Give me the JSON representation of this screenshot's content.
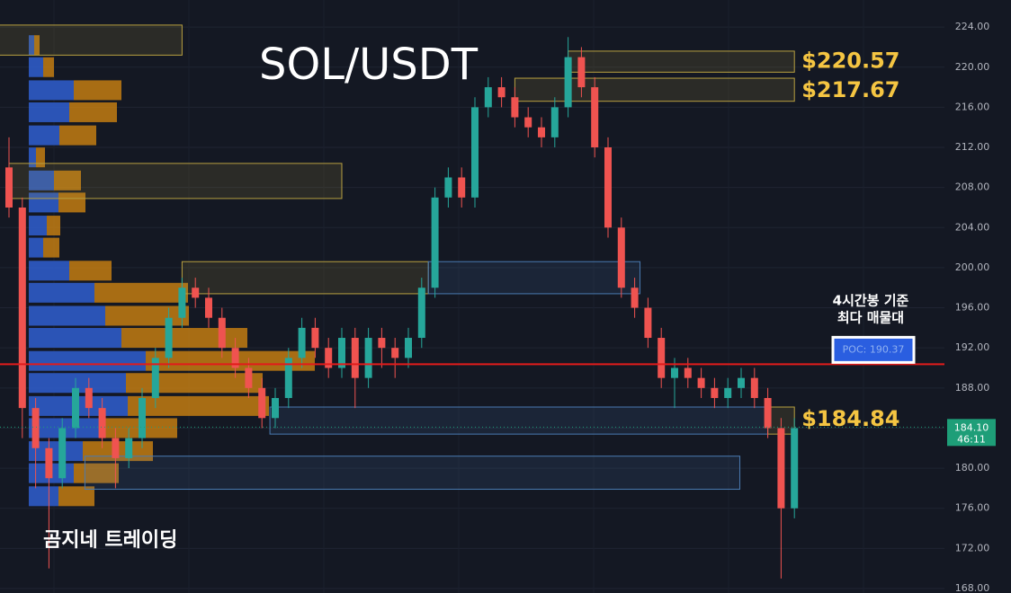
{
  "chart_data": {
    "type": "candlestick",
    "title": "SOL/USDT",
    "watermark": "곰지네 트레이딩",
    "up_color": "#26a69a",
    "down_color": "#ef5350",
    "grid": true,
    "ylim": [
      167.55,
      226.7
    ],
    "yticks": [
      {
        "value": 168,
        "label": "168.00"
      },
      {
        "value": 172,
        "label": "172.00"
      },
      {
        "value": 176,
        "label": "176.00"
      },
      {
        "value": 180,
        "label": "180.00"
      },
      {
        "value": 184,
        "label": "184.00"
      },
      {
        "value": 188,
        "label": "188.00"
      },
      {
        "value": 192,
        "label": "192.00"
      },
      {
        "value": 196,
        "label": "196.00"
      },
      {
        "value": 200,
        "label": "200.00"
      },
      {
        "value": 204,
        "label": "204.00"
      },
      {
        "value": 208,
        "label": "208.00"
      },
      {
        "value": 212,
        "label": "212.00"
      },
      {
        "value": 216,
        "label": "216.00"
      },
      {
        "value": 220,
        "label": "220.00"
      },
      {
        "value": 224,
        "label": "224.00"
      }
    ],
    "candles": {
      "open": [
        210,
        206,
        186,
        182,
        179,
        184,
        188,
        186,
        183,
        181,
        183,
        187,
        191,
        195,
        198,
        197,
        195,
        192,
        190,
        188,
        185,
        187,
        191,
        194,
        192,
        190,
        193,
        189,
        193,
        192,
        191,
        193,
        198,
        207,
        209,
        207,
        216,
        218,
        217,
        215,
        214,
        213,
        216,
        221,
        218,
        212,
        204,
        198,
        196,
        193,
        189,
        190,
        189,
        188,
        187,
        188,
        189,
        187,
        184,
        176
      ],
      "high": [
        213,
        207,
        187,
        183,
        185,
        189,
        189,
        187,
        184,
        184,
        188,
        192,
        196,
        199,
        199,
        198,
        196,
        193,
        191,
        189,
        188,
        192,
        195,
        195,
        193,
        194,
        194,
        194,
        194,
        193,
        194,
        199,
        208,
        210,
        210,
        217,
        219,
        219,
        218,
        216,
        215,
        217,
        223,
        222,
        219,
        213,
        205,
        199,
        197,
        194,
        191,
        191,
        190,
        189,
        189,
        190,
        190,
        188,
        185,
        185
      ],
      "low": [
        205,
        183,
        178,
        170,
        178,
        183,
        185,
        182,
        178,
        180,
        182,
        186,
        190,
        194,
        196,
        194,
        191,
        189,
        187,
        184,
        184,
        186,
        190,
        191,
        189,
        189,
        186,
        188,
        190,
        189,
        190,
        192,
        197,
        206,
        206,
        206,
        215,
        216,
        214,
        213,
        212,
        212,
        215,
        217,
        211,
        203,
        197,
        195,
        192,
        188,
        186,
        188,
        187,
        186,
        186,
        187,
        186,
        183,
        169,
        175
      ],
      "close": [
        206,
        186,
        182,
        179,
        184,
        188,
        186,
        183,
        181,
        183,
        187,
        191,
        195,
        198,
        197,
        195,
        192,
        190,
        188,
        185,
        187,
        191,
        194,
        192,
        190,
        193,
        189,
        193,
        192,
        191,
        193,
        198,
        207,
        209,
        207,
        216,
        218,
        217,
        215,
        214,
        213,
        216,
        221,
        218,
        212,
        204,
        198,
        196,
        193,
        189,
        190,
        189,
        188,
        187,
        188,
        189,
        187,
        184,
        176,
        184
      ]
    },
    "volume_profile": {
      "buy_color": "#2f5fd0",
      "sell_color": "#d98a10",
      "levels": [
        222.2,
        220,
        217.7,
        215.5,
        213.2,
        211,
        208.7,
        206.5,
        204.2,
        202,
        199.7,
        197.5,
        195.2,
        193,
        190.7,
        188.5,
        186.2,
        184,
        181.7,
        179.5,
        177.2
      ],
      "buy": [
        6,
        16,
        50,
        45,
        34,
        8,
        28,
        33,
        20,
        16,
        45,
        73,
        85,
        103,
        130,
        108,
        110,
        80,
        60,
        50,
        33
      ],
      "sell": [
        6,
        12,
        53,
        53,
        41,
        10,
        30,
        30,
        15,
        18,
        47,
        104,
        93,
        140,
        188,
        152,
        157,
        85,
        78,
        50,
        40
      ]
    },
    "zones": [
      {
        "top": 224.2,
        "bottom": 221.2,
        "from": -1,
        "to": 13,
        "color": "#b8a040"
      },
      {
        "top": 221.6,
        "bottom": 219.5,
        "from": 42,
        "to": 59,
        "color": "#b8a040",
        "price": 220.57,
        "label": "$220.57"
      },
      {
        "top": 218.9,
        "bottom": 216.6,
        "from": 38,
        "to": 59,
        "color": "#b8a040",
        "price": 217.67,
        "label": "$217.67"
      },
      {
        "top": 210.4,
        "bottom": 206.9,
        "from": 0,
        "to": 25,
        "color": "#b8a040"
      },
      {
        "top": 200.6,
        "bottom": 197.4,
        "from": 13,
        "to": 31.5,
        "color": "#b8a040"
      },
      {
        "top": 200.6,
        "bottom": 197.4,
        "from": 31.5,
        "to": 47.4,
        "color": "#4a7ab0"
      },
      {
        "top": 186.1,
        "bottom": 183.4,
        "from": 19.6,
        "to": 57,
        "color": "#4a7ab0"
      },
      {
        "top": 186.1,
        "bottom": 183.4,
        "from": 57,
        "to": 59,
        "color": "#b8a040",
        "price": 184.84,
        "label": "$184.84"
      },
      {
        "top": 181.2,
        "bottom": 177.9,
        "from": 5.7,
        "to": 54.9,
        "color": "#4a7ab0"
      }
    ],
    "poc": {
      "value": 190.37,
      "label": "POC: 190.37",
      "note": [
        "4시간봉 기준",
        "최다 매물대"
      ],
      "color": "#e21b1b"
    },
    "last_price": {
      "value": 184.1,
      "label": "184.10",
      "countdown": "46:11",
      "color": "#1e9e78"
    }
  }
}
